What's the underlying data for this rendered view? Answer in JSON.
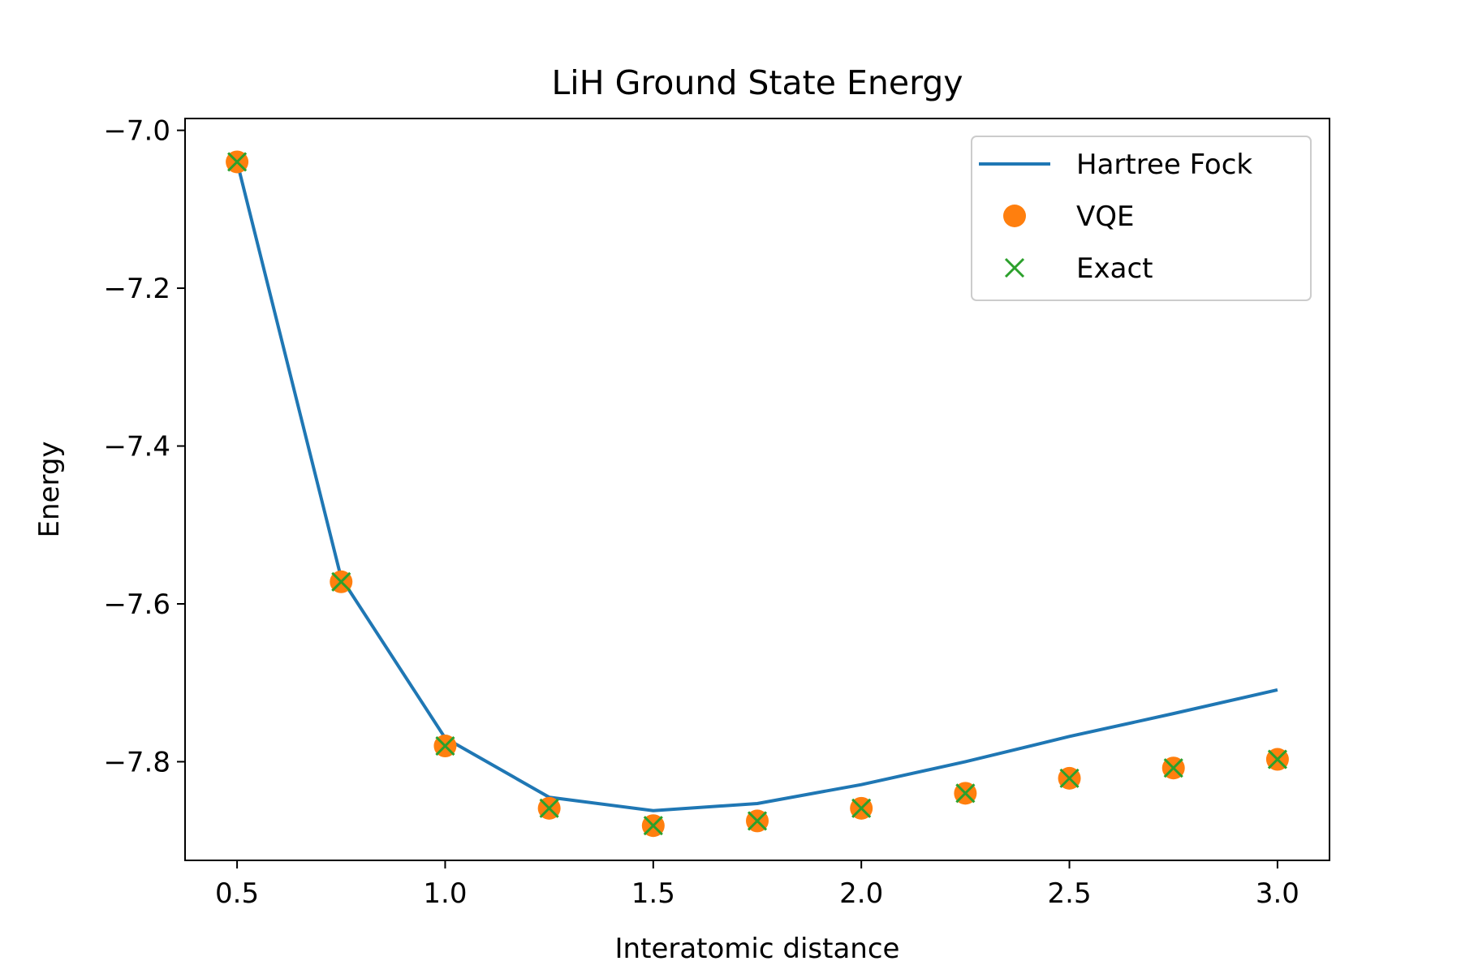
{
  "chart_data": {
    "type": "line",
    "title": "LiH Ground State Energy",
    "xlabel": "Interatomic distance",
    "ylabel": "Energy",
    "xlim": [
      0.375,
      3.125
    ],
    "ylim": [
      -7.925,
      -6.985
    ],
    "x_ticks": [
      0.5,
      1.0,
      1.5,
      2.0,
      2.5,
      3.0
    ],
    "x_tick_labels": [
      "0.5",
      "1.0",
      "1.5",
      "2.0",
      "2.5",
      "3.0"
    ],
    "y_ticks": [
      -7.0,
      -7.2,
      -7.4,
      -7.6,
      -7.8
    ],
    "y_tick_labels": [
      "−7.0",
      "−7.2",
      "−7.4",
      "−7.6",
      "−7.8"
    ],
    "grid": false,
    "legend_position": "top-right",
    "x": [
      0.5,
      0.75,
      1.0,
      1.25,
      1.5,
      1.75,
      2.0,
      2.25,
      2.5,
      2.75,
      3.0
    ],
    "series": [
      {
        "name": "Hartree Fock",
        "style": "line",
        "color": "#1f77b4",
        "values": [
          -7.04,
          -7.567,
          -7.77,
          -7.845,
          -7.862,
          -7.853,
          -7.829,
          -7.8,
          -7.768,
          -7.739,
          -7.709
        ]
      },
      {
        "name": "VQE",
        "style": "circle",
        "color": "#ff7f0e",
        "values": [
          -7.04,
          -7.572,
          -7.78,
          -7.859,
          -7.881,
          -7.875,
          -7.859,
          -7.84,
          -7.821,
          -7.808,
          -7.797
        ]
      },
      {
        "name": "Exact",
        "style": "x",
        "color": "#2ca02c",
        "values": [
          -7.04,
          -7.572,
          -7.78,
          -7.859,
          -7.881,
          -7.875,
          -7.859,
          -7.84,
          -7.821,
          -7.808,
          -7.797
        ]
      }
    ]
  }
}
